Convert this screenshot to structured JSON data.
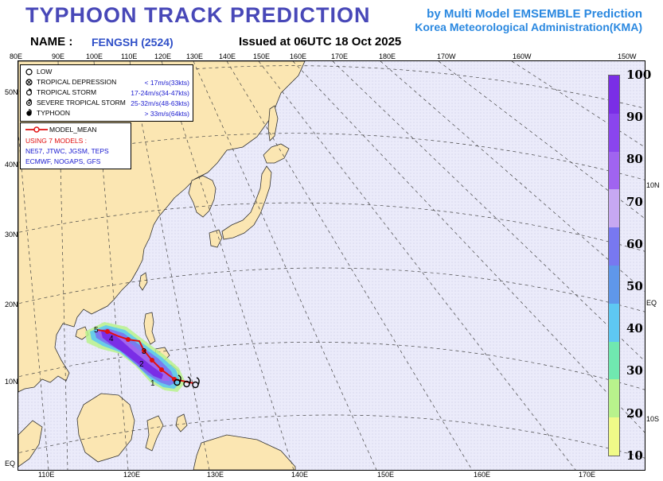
{
  "header": {
    "title": "TYPHOON  TRACK  PREDICTION",
    "byline": "by Multi Model EMSEMBLE Prediction",
    "organization": "Korea Meteorological Administration(KMA)",
    "name_label": "NAME :",
    "name_value": "FENGSH (2524)",
    "issued": "Issued at  06UTC 18 Oct 2025"
  },
  "top_ticks": [
    "80E",
    "90E",
    "100E",
    "110E",
    "120E",
    "130E",
    "140E",
    "150E",
    "160E",
    "170E",
    "180E",
    "170W",
    "160W",
    "150W"
  ],
  "bottom_ticks": [
    "110E",
    "120E",
    "130E",
    "140E",
    "150E",
    "160E",
    "170E"
  ],
  "left_ticks": [
    "50N",
    "40N",
    "30N",
    "20N",
    "10N",
    "EQ"
  ],
  "right_ticks": [
    "10N",
    "EQ",
    "10S"
  ],
  "legend": {
    "items": [
      {
        "label": "LOW",
        "range": "",
        "icon": "low-circle-icon"
      },
      {
        "label": "TROPICAL DEPRESSION",
        "range": "< 17m/s(33kts)",
        "icon": "tropical-depression-icon"
      },
      {
        "label": "TROPICAL STORM",
        "range": "17-24m/s(34-47kts)",
        "icon": "tropical-storm-icon"
      },
      {
        "label": "SEVERE TROPICAL STORM",
        "range": "25-32m/s(48-63kts)",
        "icon": "severe-tropical-storm-icon"
      },
      {
        "label": "TYPHOON",
        "range": "> 33m/s(64kts)",
        "icon": "typhoon-icon"
      }
    ],
    "model_mean_label": "MODEL_MEAN",
    "models_header": "USING 7 MODELS :",
    "models_line1": "NE57, JTWC, JGSM, TEPS",
    "models_line2": "ECMWF, NOGAPS, GFS"
  },
  "colorbar": {
    "labels": [
      "100",
      "90",
      "80",
      "70",
      "60",
      "50",
      "40",
      "30",
      "20",
      "10"
    ],
    "colors": [
      "#7a2ee6",
      "#8a45ee",
      "#a064f0",
      "#c7a8f2",
      "#7878f0",
      "#5f97ea",
      "#5ec8f2",
      "#70e8b0",
      "#b8f28c",
      "#f0fa88"
    ]
  },
  "map_colors": {
    "sea": "#ebebfa",
    "land": "#fbe6b2",
    "track": "#e01010",
    "coast": "#333333"
  },
  "track_model_mean": {
    "type": "path",
    "forecast_labels": [
      "1",
      "2",
      "3",
      "4",
      "5"
    ]
  }
}
